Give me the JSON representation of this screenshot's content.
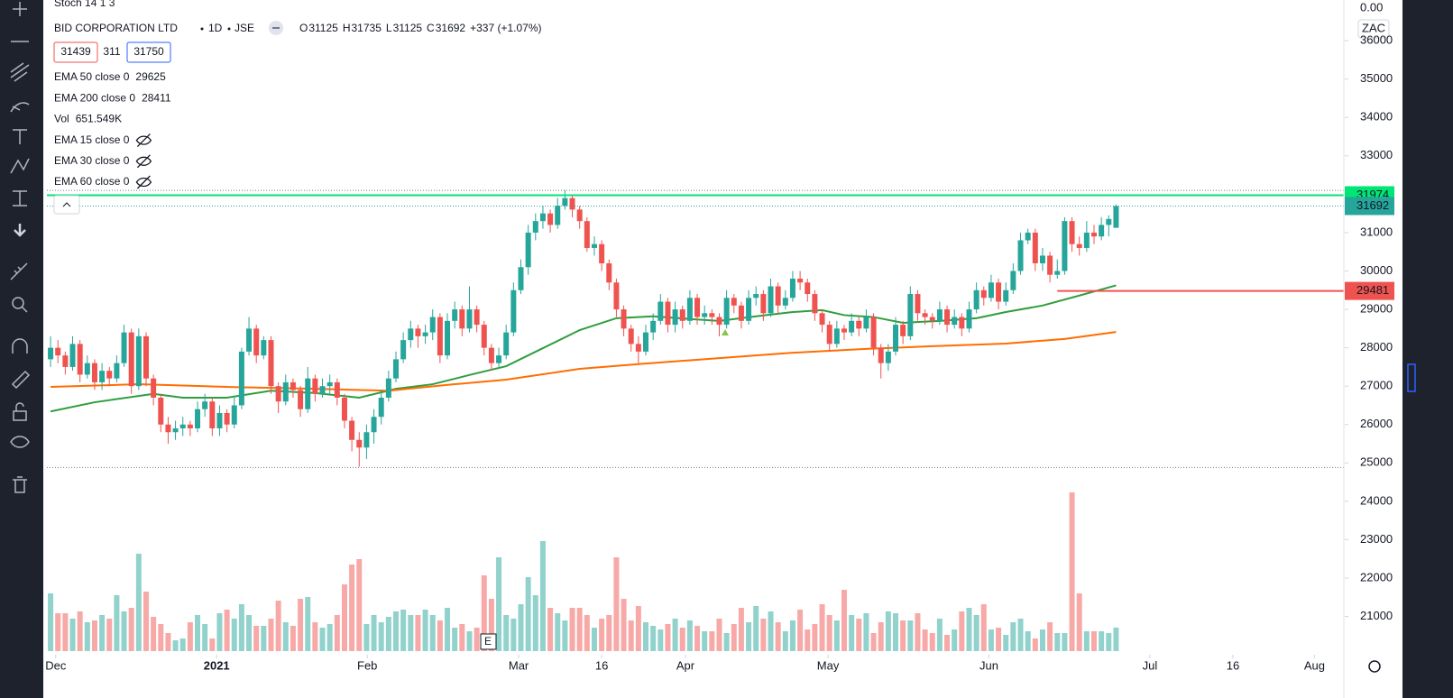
{
  "header": {
    "indicator_top": "Stoch 14 1 3",
    "symbol": "BID CORPORATION LTD",
    "interval": "1D",
    "exchange": "JSE",
    "ohlc": [
      {
        "label": "O",
        "value": 31125
      },
      {
        "label": "H",
        "value": 31735
      },
      {
        "label": "L",
        "value": 31125
      },
      {
        "label": "C",
        "value": 31692
      }
    ],
    "change": "+337 (+1.07%)",
    "bid": 31439,
    "spread": 311,
    "ask": 31750
  },
  "legend": [
    {
      "name": "EMA 50 close 0",
      "value": 29625,
      "color": "#2e9e3e"
    },
    {
      "name": "EMA 200 close 0",
      "value": 28411,
      "color": "#ff6d00"
    },
    {
      "name": "Vol",
      "value": "651.549K",
      "color": "#26a69a"
    },
    {
      "name": "EMA 15 close 0",
      "hidden": true
    },
    {
      "name": "EMA 30 close 0",
      "hidden": true
    },
    {
      "name": "EMA 60 close 0",
      "hidden": true
    }
  ],
  "chart_data": {
    "type": "candlestick",
    "currency": "ZAC",
    "stoch_axis_label": "0.00",
    "earnings_marker": "E",
    "up_color": "#26a69a",
    "down_color": "#ef5350",
    "xlim": [
      -0.5,
      176
    ],
    "ylim": [
      20050,
      37060
    ],
    "volume_lim": [
      0,
      5000
    ],
    "yticks": [
      21000,
      22000,
      23000,
      24000,
      25000,
      26000,
      27000,
      28000,
      29000,
      30000,
      31000,
      32000,
      33000,
      34000,
      35000,
      36000
    ],
    "xticks": [
      {
        "value": 0.7,
        "label": "Dec"
      },
      {
        "value": 22.6,
        "label": "2021"
      },
      {
        "value": 43.1,
        "label": "Feb"
      },
      {
        "value": 63.7,
        "label": "Mar"
      },
      {
        "value": 75,
        "label": "16"
      },
      {
        "value": 86.4,
        "label": "Apr"
      },
      {
        "value": 105.8,
        "label": "May"
      },
      {
        "value": 127.7,
        "label": "Jun"
      },
      {
        "value": 149.6,
        "label": "Jul"
      },
      {
        "value": 160.9,
        "label": "16"
      },
      {
        "value": 172,
        "label": "Aug"
      }
    ],
    "open": [
      27700,
      28000,
      27800,
      27500,
      28100,
      27300,
      27600,
      27100,
      27400,
      27200,
      27600,
      28400,
      27000,
      28300,
      27200,
      26700,
      26000,
      25800,
      25900,
      26000,
      25900,
      26400,
      26600,
      25900,
      26300,
      26000,
      26500,
      27900,
      28500,
      27800,
      28200,
      27000,
      26600,
      27100,
      26900,
      26400,
      27200,
      26800,
      27000,
      27100,
      26700,
      26100,
      25600,
      25400,
      25800,
      26200,
      26700,
      27200,
      27700,
      28200,
      28500,
      28300,
      28400,
      28800,
      27800,
      28700,
      29000,
      28500,
      29000,
      28600,
      28000,
      27600,
      27800,
      28400,
      29500,
      30100,
      31000,
      31300,
      31500,
      31200,
      31700,
      31900,
      31600,
      31300,
      30600,
      30700,
      30200,
      29700,
      29000,
      28500,
      28100,
      27900,
      28400,
      28700,
      29200,
      28600,
      29000,
      28700,
      29300,
      28800,
      28900,
      28800,
      28600,
      29300,
      29100,
      28700,
      29300,
      29400,
      28900,
      29600,
      29100,
      29300,
      29800,
      29700,
      29400,
      28900,
      28600,
      28100,
      28500,
      28400,
      28700,
      28500,
      28800,
      28000,
      27600,
      27900,
      28600,
      28300,
      29400,
      28900,
      28800,
      28700,
      29000,
      28600,
      28800,
      28500,
      29000,
      29500,
      29300,
      29700,
      29200,
      29500,
      30000,
      30800,
      31000,
      30200,
      30400,
      29900,
      30000,
      31300,
      30700,
      30600,
      31000,
      30900,
      31200,
      31125
    ],
    "high": [
      28300,
      28200,
      27900,
      28300,
      28200,
      27800,
      27700,
      27600,
      27500,
      27800,
      28600,
      28500,
      28500,
      28400,
      27300,
      26800,
      26200,
      26100,
      26200,
      26100,
      26600,
      26800,
      26700,
      26500,
      26400,
      26700,
      28000,
      28800,
      28600,
      28300,
      28300,
      27100,
      27300,
      27200,
      27000,
      27500,
      27300,
      27200,
      27300,
      27200,
      26800,
      26200,
      25800,
      26000,
      26400,
      26900,
      27400,
      27900,
      28400,
      28700,
      28600,
      28600,
      29000,
      28900,
      28900,
      29200,
      29100,
      29600,
      29100,
      28700,
      28100,
      28000,
      28600,
      29700,
      30300,
      31200,
      31500,
      31700,
      31600,
      31900,
      32100,
      32000,
      31700,
      31400,
      30900,
      30800,
      30300,
      29800,
      29100,
      28600,
      28300,
      28600,
      28900,
      29400,
      29300,
      29200,
      29100,
      29500,
      29400,
      29100,
      29000,
      28900,
      29500,
      29400,
      29200,
      29500,
      29600,
      29500,
      29800,
      29700,
      29500,
      30000,
      30000,
      29800,
      29500,
      29000,
      28700,
      28700,
      28600,
      28900,
      28800,
      29000,
      28900,
      28100,
      28100,
      28800,
      28700,
      29600,
      29500,
      29000,
      28900,
      29200,
      29100,
      29000,
      28900,
      29200,
      29700,
      29600,
      29900,
      29800,
      29700,
      30200,
      31000,
      31100,
      31100,
      30600,
      30500,
      30300,
      31400,
      31400,
      30900,
      31300,
      31200,
      31400,
      31450,
      31735
    ],
    "low": [
      27500,
      27600,
      27300,
      27400,
      27100,
      27200,
      26900,
      26900,
      27000,
      27100,
      27500,
      26800,
      26900,
      27000,
      26500,
      25800,
      25500,
      25600,
      25700,
      25700,
      25800,
      26200,
      25700,
      25700,
      25800,
      25900,
      26400,
      27800,
      27600,
      27700,
      26800,
      26300,
      26500,
      26700,
      26200,
      26300,
      26600,
      26700,
      26800,
      26500,
      25900,
      25300,
      24900,
      25100,
      25500,
      26000,
      26600,
      27100,
      27600,
      28000,
      28000,
      28100,
      28200,
      27600,
      27700,
      28500,
      28300,
      28400,
      28400,
      27800,
      27400,
      27500,
      27700,
      28300,
      29400,
      29900,
      30800,
      31100,
      31000,
      31100,
      31600,
      31400,
      31100,
      30500,
      30400,
      30000,
      29500,
      28800,
      28300,
      27900,
      27600,
      27800,
      28200,
      28600,
      28400,
      28400,
      28500,
      28600,
      28600,
      28600,
      28600,
      28300,
      28500,
      28900,
      28500,
      28600,
      29100,
      28700,
      28800,
      28900,
      29000,
      29200,
      29500,
      29200,
      28700,
      28400,
      27900,
      28000,
      28200,
      28300,
      28300,
      28400,
      27800,
      27200,
      27400,
      27800,
      28100,
      28200,
      28700,
      28600,
      28500,
      28600,
      28400,
      28500,
      28300,
      28400,
      28900,
      29100,
      29200,
      29000,
      29100,
      29400,
      29900,
      30700,
      30000,
      30000,
      29700,
      29800,
      29900,
      30500,
      30400,
      30500,
      30700,
      30800,
      30900,
      31125
    ],
    "close": [
      28000,
      27800,
      27500,
      28100,
      27300,
      27600,
      27100,
      27400,
      27200,
      27600,
      28400,
      27000,
      28300,
      27200,
      26700,
      26000,
      25800,
      25900,
      26000,
      25900,
      26400,
      26600,
      25900,
      26300,
      26000,
      26500,
      27900,
      28500,
      27800,
      28200,
      27000,
      26600,
      27100,
      26900,
      26400,
      27200,
      26800,
      27000,
      27100,
      26700,
      26100,
      25600,
      25400,
      25800,
      26200,
      26700,
      27200,
      27700,
      28200,
      28500,
      28300,
      28400,
      28800,
      27800,
      28700,
      29000,
      28500,
      29000,
      28600,
      28000,
      27600,
      27800,
      28400,
      29500,
      30100,
      31000,
      31300,
      31500,
      31200,
      31700,
      31900,
      31600,
      31300,
      30600,
      30700,
      30200,
      29700,
      29000,
      28500,
      28100,
      27900,
      28400,
      28700,
      29200,
      28600,
      29000,
      28700,
      29300,
      28800,
      28900,
      28800,
      28600,
      29300,
      29100,
      28700,
      29300,
      29400,
      28900,
      29600,
      29100,
      29300,
      29800,
      29700,
      29400,
      28900,
      28600,
      28100,
      28500,
      28400,
      28700,
      28500,
      28800,
      28000,
      27600,
      27900,
      28600,
      28300,
      29400,
      28900,
      28800,
      28700,
      29000,
      28600,
      28800,
      28500,
      29000,
      29500,
      29300,
      29700,
      29200,
      29500,
      30000,
      30800,
      31000,
      30200,
      30400,
      29900,
      30000,
      31300,
      30700,
      30600,
      31000,
      30900,
      31200,
      31355,
      31692
    ],
    "volume": [
      1600,
      1050,
      1050,
      900,
      1100,
      800,
      850,
      1000,
      900,
      1550,
      1100,
      1200,
      2700,
      1650,
      950,
      750,
      500,
      300,
      350,
      800,
      1000,
      750,
      350,
      1050,
      1150,
      900,
      1300,
      1000,
      700,
      700,
      900,
      1400,
      800,
      700,
      1450,
      1500,
      800,
      650,
      750,
      1000,
      1850,
      2400,
      2550,
      750,
      1000,
      800,
      950,
      1100,
      1150,
      1000,
      1000,
      1150,
      1000,
      850,
      1200,
      650,
      750,
      550,
      650,
      2100,
      1450,
      2600,
      1000,
      900,
      1300,
      2050,
      1550,
      3050,
      1200,
      1050,
      850,
      1200,
      1200,
      1000,
      650,
      900,
      1000,
      2600,
      1450,
      850,
      1250,
      800,
      700,
      600,
      750,
      900,
      650,
      850,
      700,
      550,
      550,
      900,
      500,
      750,
      1200,
      800,
      1250,
      900,
      1100,
      800,
      550,
      850,
      1150,
      600,
      750,
      1300,
      1000,
      850,
      1700,
      1000,
      900,
      1050,
      500,
      800,
      1100,
      1050,
      850,
      850,
      1050,
      600,
      500,
      900,
      450,
      600,
      1100,
      1200,
      1000,
      1300,
      600,
      650,
      450,
      800,
      900,
      550,
      350,
      600,
      800,
      500,
      500,
      4400,
      1600,
      550,
      550,
      550,
      500,
      651.549
    ],
    "lines": [
      {
        "name": "EMA 50",
        "color": "#2e9e3e",
        "x": [
          0,
          6,
          14,
          18,
          24,
          30,
          36,
          42,
          47,
          52,
          57,
          62,
          67,
          72,
          77,
          82,
          87,
          91,
          96,
          101,
          105,
          108,
          112,
          116,
          121,
          126,
          130,
          135,
          140,
          145
        ],
        "values": [
          26340,
          26580,
          26800,
          26700,
          26700,
          26880,
          26820,
          26700,
          26930,
          27050,
          27290,
          27520,
          27990,
          28460,
          28770,
          28820,
          28750,
          28700,
          28820,
          28930,
          28980,
          28850,
          28800,
          28650,
          28700,
          28770,
          28930,
          29100,
          29360,
          29625
        ]
      },
      {
        "name": "EMA 200",
        "color": "#ff6d00",
        "x": [
          0,
          12,
          24,
          36,
          46,
          55,
          62,
          72,
          81,
          91,
          101,
          111,
          120,
          130,
          138,
          145
        ],
        "values": [
          26980,
          27050,
          26980,
          26930,
          26880,
          27050,
          27170,
          27450,
          27590,
          27730,
          27870,
          27970,
          28040,
          28110,
          28230,
          28411
        ]
      }
    ],
    "levels": [
      {
        "value": 31974,
        "color": "#00e676",
        "from": -0.5
      },
      {
        "value": 31692,
        "color": "#26a69a",
        "from": -0.5,
        "dotted": true
      },
      {
        "value": 29481,
        "color": "#ef5350",
        "from": 137
      }
    ],
    "range_lines": [
      32100,
      24880
    ]
  }
}
